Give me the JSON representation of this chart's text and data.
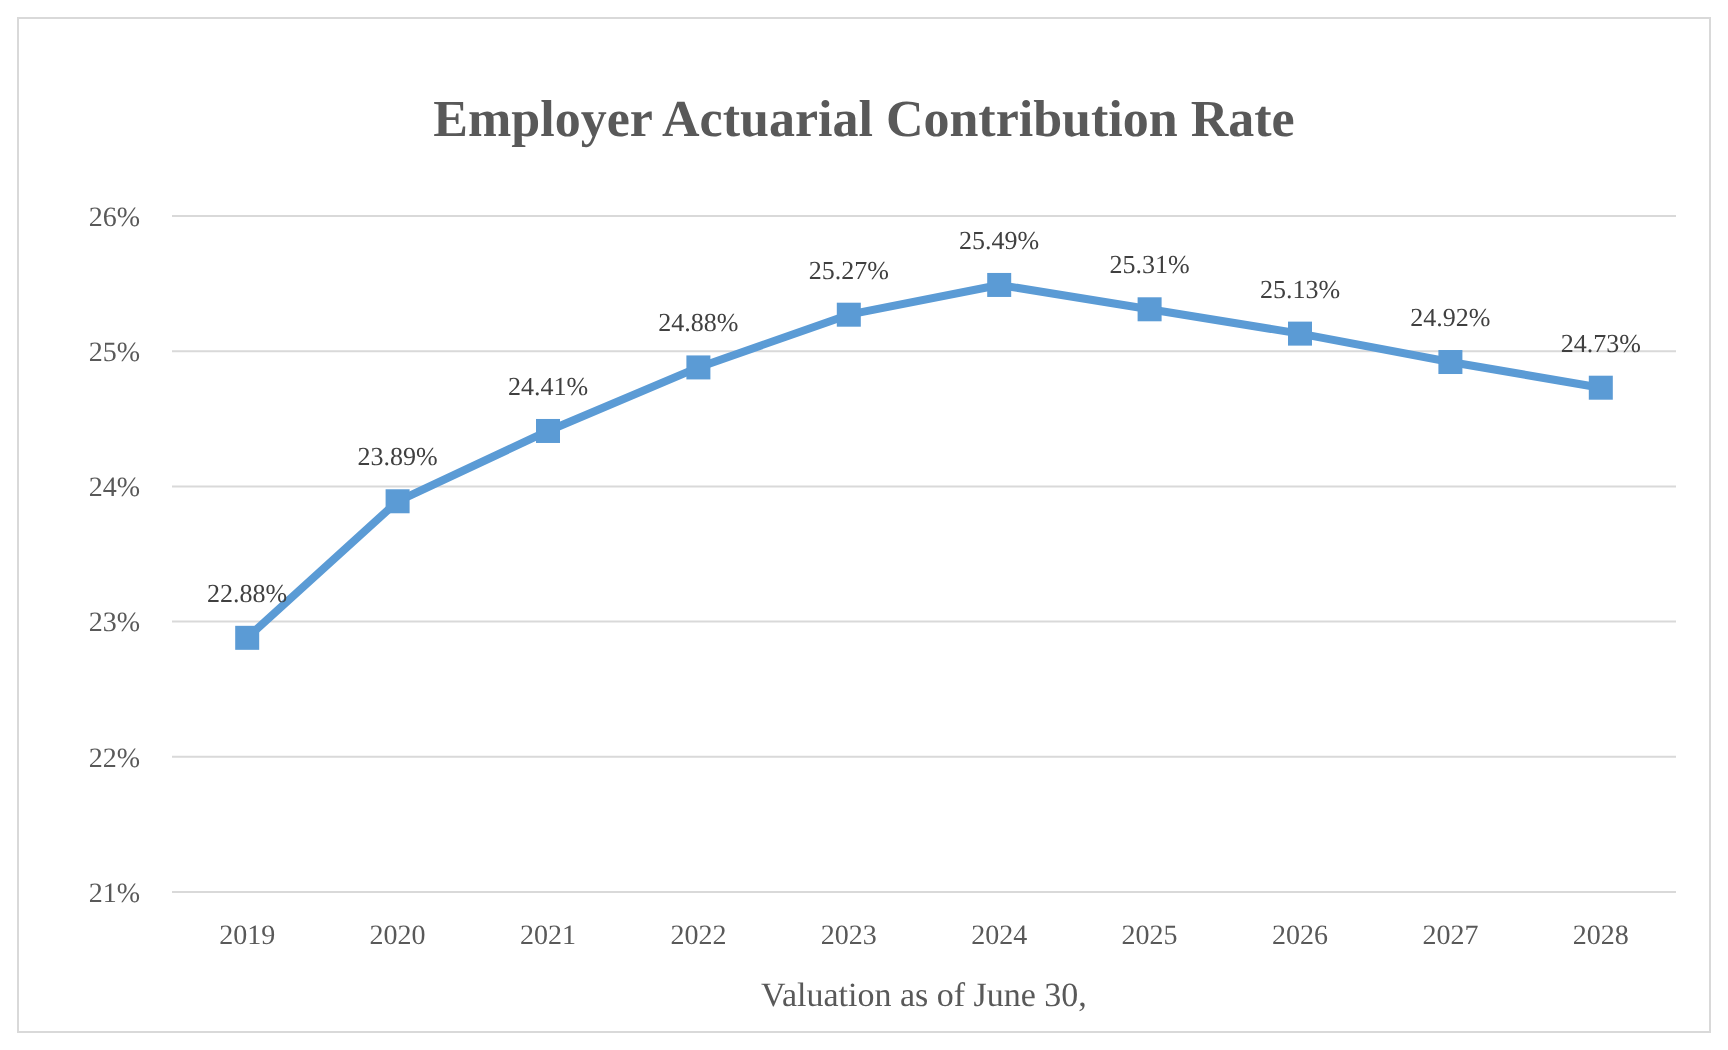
{
  "chart_data": {
    "type": "line",
    "title": "Employer Actuarial Contribution Rate",
    "xlabel": "Valuation as of June 30,",
    "categories": [
      "2019",
      "2020",
      "2021",
      "2022",
      "2023",
      "2024",
      "2025",
      "2026",
      "2027",
      "2028"
    ],
    "series": [
      {
        "color": "#5b9bd5",
        "values": [
          22.88,
          23.89,
          24.41,
          24.88,
          25.27,
          25.49,
          25.31,
          25.13,
          24.92,
          24.73
        ],
        "value_labels": [
          "22.88%",
          "23.89%",
          "24.41%",
          "24.88%",
          "25.27%",
          "25.49%",
          "25.31%",
          "25.13%",
          "24.92%",
          "24.73%"
        ]
      }
    ],
    "ylim": [
      21,
      26
    ],
    "yticks": [
      {
        "value": 21,
        "label": "21%"
      },
      {
        "value": 22,
        "label": "22%"
      },
      {
        "value": 23,
        "label": "23%"
      },
      {
        "value": 24,
        "label": "24%"
      },
      {
        "value": 25,
        "label": "25%"
      },
      {
        "value": 26,
        "label": "26%"
      }
    ],
    "grid": "y",
    "marker": "square",
    "line_style": "solid"
  }
}
